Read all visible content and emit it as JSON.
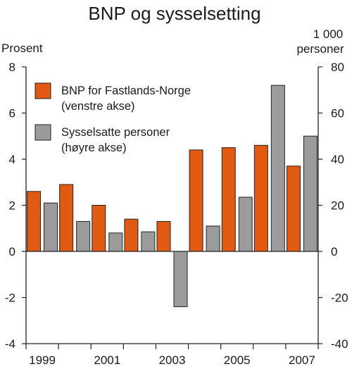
{
  "chart_data": {
    "type": "bar",
    "title": "BNP og sysselsetting",
    "left_axis_unit": "Prosent",
    "right_axis_unit_line1": "1 000",
    "right_axis_unit_line2": "personer",
    "categories": [
      "1999",
      "2000",
      "2001",
      "2002",
      "2003",
      "2004",
      "2005",
      "2006",
      "2007"
    ],
    "x_tick_labels": [
      "1999",
      "",
      "2001",
      "",
      "2003",
      "",
      "2005",
      "",
      "2007"
    ],
    "left_ylim": [
      -4,
      8
    ],
    "left_ticks": [
      "8",
      "6",
      "4",
      "2",
      "0",
      "-2",
      "-4"
    ],
    "right_ylim": [
      -40,
      80
    ],
    "right_ticks": [
      "80",
      "60",
      "40",
      "20",
      "0",
      "-20",
      "-40"
    ],
    "series": [
      {
        "name": "BNP for Fastlands-Norge",
        "name_line2": "(venstre akse)",
        "axis": "left",
        "color": "#e05a12",
        "values": [
          2.6,
          2.9,
          2.0,
          1.4,
          1.3,
          4.4,
          4.5,
          4.6,
          3.7
        ]
      },
      {
        "name": "Sysselsatte personer",
        "name_line2": "(høyre akse)",
        "axis": "right",
        "color": "#9b9b9b",
        "values": [
          21,
          13,
          8,
          8.5,
          -24,
          11,
          23.5,
          72,
          50
        ]
      }
    ],
    "legend_position": "top-left",
    "grid": false
  }
}
